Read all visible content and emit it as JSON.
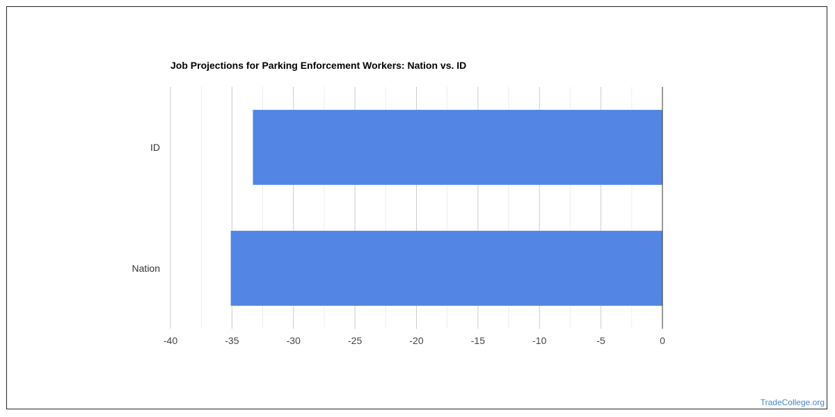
{
  "chart_data": {
    "type": "bar",
    "orientation": "horizontal",
    "title": "Job Projections for Parking Enforcement Workers: Nation vs. ID",
    "categories": [
      "ID",
      "Nation"
    ],
    "values": [
      -33.3,
      -35.1
    ],
    "xlim": [
      -40,
      0
    ],
    "xticks": [
      "-40",
      "-35",
      "-30",
      "-25",
      "-20",
      "-15",
      "-10",
      "-5",
      "0"
    ],
    "xlabel": "",
    "ylabel": "",
    "grid": true,
    "bar_color": "#5386e4"
  },
  "watermark": "TradeCollege.org"
}
